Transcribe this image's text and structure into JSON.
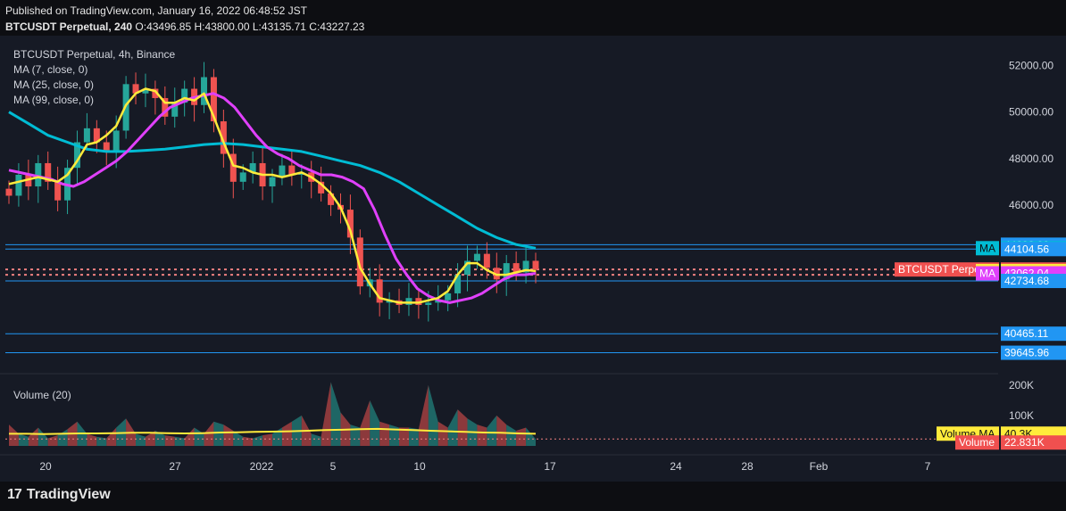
{
  "header": {
    "published": "Published on TradingView.com, January 16, 2022 06:48:52 JST",
    "symbol": "BTCUSDT Perpetual, 240",
    "ohlc": {
      "o_label": "O:",
      "o": "43496.85",
      "h_label": "H:",
      "h": "43800.00",
      "l_label": "L:",
      "l": "43135.71",
      "c_label": "C:",
      "c": "43227.23"
    }
  },
  "legend": {
    "title": "BTCUSDT Perpetual, 4h, Binance",
    "ma7": "MA (7, close, 0)",
    "ma25": "MA (25, close, 0)",
    "ma99": "MA (99, close, 0)",
    "volume": "Volume (20)"
  },
  "colors": {
    "background": "#161a25",
    "up": "#26a69a",
    "down": "#ef5350",
    "ma7": "#ffeb3b",
    "ma25": "#e040fb",
    "ma99": "#00bcd4",
    "hline": "#2196f3",
    "price_label": "#f0504f",
    "price_line": "#f08080"
  },
  "chart_data": {
    "type": "candlestick",
    "ylim": [
      38900,
      52900
    ],
    "y_ticks": [
      "52000.00",
      "50000.00",
      "48000.00",
      "46000.00"
    ],
    "x_ticks": [
      "20",
      "27",
      "2022",
      "5",
      "10",
      "17",
      "24",
      "28",
      "Feb",
      "7"
    ],
    "close_series": [
      46400,
      47300,
      46800,
      47800,
      47000,
      46200,
      47600,
      48700,
      49300,
      48700,
      48300,
      49200,
      51200,
      50800,
      51000,
      50600,
      49800,
      50400,
      51000,
      50300,
      51500,
      49600,
      48200,
      47000,
      47400,
      47800,
      46800,
      47200,
      47700,
      47300,
      47400,
      47000,
      46500,
      46000,
      45800,
      44600,
      42500,
      42800,
      41800,
      41900,
      41700,
      42000,
      41700,
      41800,
      41900,
      42200,
      43000,
      43600,
      43900,
      43300,
      42800,
      43500,
      43100,
      43600,
      43227
    ],
    "ma7": [
      46900,
      47000,
      47100,
      47200,
      47100,
      47000,
      47300,
      47900,
      48600,
      48700,
      49000,
      49400,
      50300,
      50800,
      51000,
      50900,
      50400,
      50400,
      50600,
      50500,
      50800,
      49800,
      48700,
      47700,
      47600,
      47400,
      47300,
      47300,
      47200,
      47300,
      47400,
      47200,
      46900,
      46500,
      45900,
      44900,
      43300,
      42600,
      42000,
      41900,
      41800,
      41800,
      41800,
      41900,
      42000,
      42300,
      43000,
      43500,
      43500,
      43200,
      43000,
      43000,
      43100,
      43200,
      43160
    ],
    "ma25": [
      47500,
      47400,
      47300,
      47200,
      47100,
      46900,
      46800,
      47000,
      47300,
      47600,
      47900,
      48300,
      48800,
      49300,
      49800,
      50200,
      50400,
      50600,
      50700,
      50800,
      50600,
      50200,
      49600,
      49000,
      48500,
      48200,
      48000,
      47700,
      47500,
      47300,
      47300,
      47200,
      47000,
      46700,
      45800,
      44700,
      43700,
      43000,
      42400,
      42100,
      41900,
      41800,
      41900,
      42000,
      42200,
      42500,
      42800,
      43000,
      43000,
      43062
    ],
    "ma99": [
      50000,
      49500,
      49000,
      48700,
      48400,
      48300,
      48300,
      48350,
      48400,
      48500,
      48600,
      48650,
      48600,
      48500,
      48400,
      48300,
      48100,
      47900,
      47700,
      47400,
      47000,
      46500,
      46000,
      45500,
      45000,
      44600,
      44300,
      44143
    ],
    "horizontal_lines": [
      "44293.90",
      "44104.56",
      "43227.23",
      "43160.57",
      "43062.04",
      "42734.68",
      "40465.11",
      "39645.96"
    ],
    "volume": {
      "y_ticks": [
        "200K",
        "100K"
      ],
      "ma_value": "40.3K",
      "last_value": "22.831K",
      "values": [
        70,
        40,
        30,
        60,
        25,
        35,
        55,
        80,
        40,
        30,
        25,
        60,
        90,
        40,
        30,
        50,
        35,
        30,
        25,
        60,
        40,
        80,
        70,
        50,
        30,
        25,
        35,
        40,
        60,
        80,
        100,
        40,
        30,
        210,
        110,
        70,
        60,
        150,
        80,
        70,
        60,
        60,
        55,
        200,
        80,
        60,
        120,
        90,
        70,
        60,
        100,
        70,
        50,
        60,
        23
      ],
      "ma_values": [
        40,
        40,
        39,
        40,
        41,
        41,
        42,
        43,
        43,
        42,
        41,
        42,
        44,
        45,
        46,
        47,
        48,
        50,
        52,
        53,
        55,
        56,
        54,
        52,
        50,
        48,
        46,
        44,
        43,
        41,
        40
      ]
    }
  },
  "price_labels": {
    "ma99_tag": "MA",
    "ma99_val": "44143.43",
    "top_val": "44293.90",
    "line1_val": "44104.56",
    "symbol_tag": "BTCUSDT Perpetual",
    "last_val": "43227.23",
    "ma7_tag": "MA",
    "ma7_val": "43160.57",
    "ma25_tag": "MA",
    "ma25_val": "43062.04",
    "l1_val": "42734.68",
    "l2_val": "40465.11",
    "l3_val": "39645.96",
    "vol_ma_tag": "Volume MA",
    "vol_ma_val": "40.3K",
    "vol_tag": "Volume",
    "vol_val": "22.831K"
  },
  "footer": {
    "brand": "TradingView",
    "logo": "17"
  }
}
